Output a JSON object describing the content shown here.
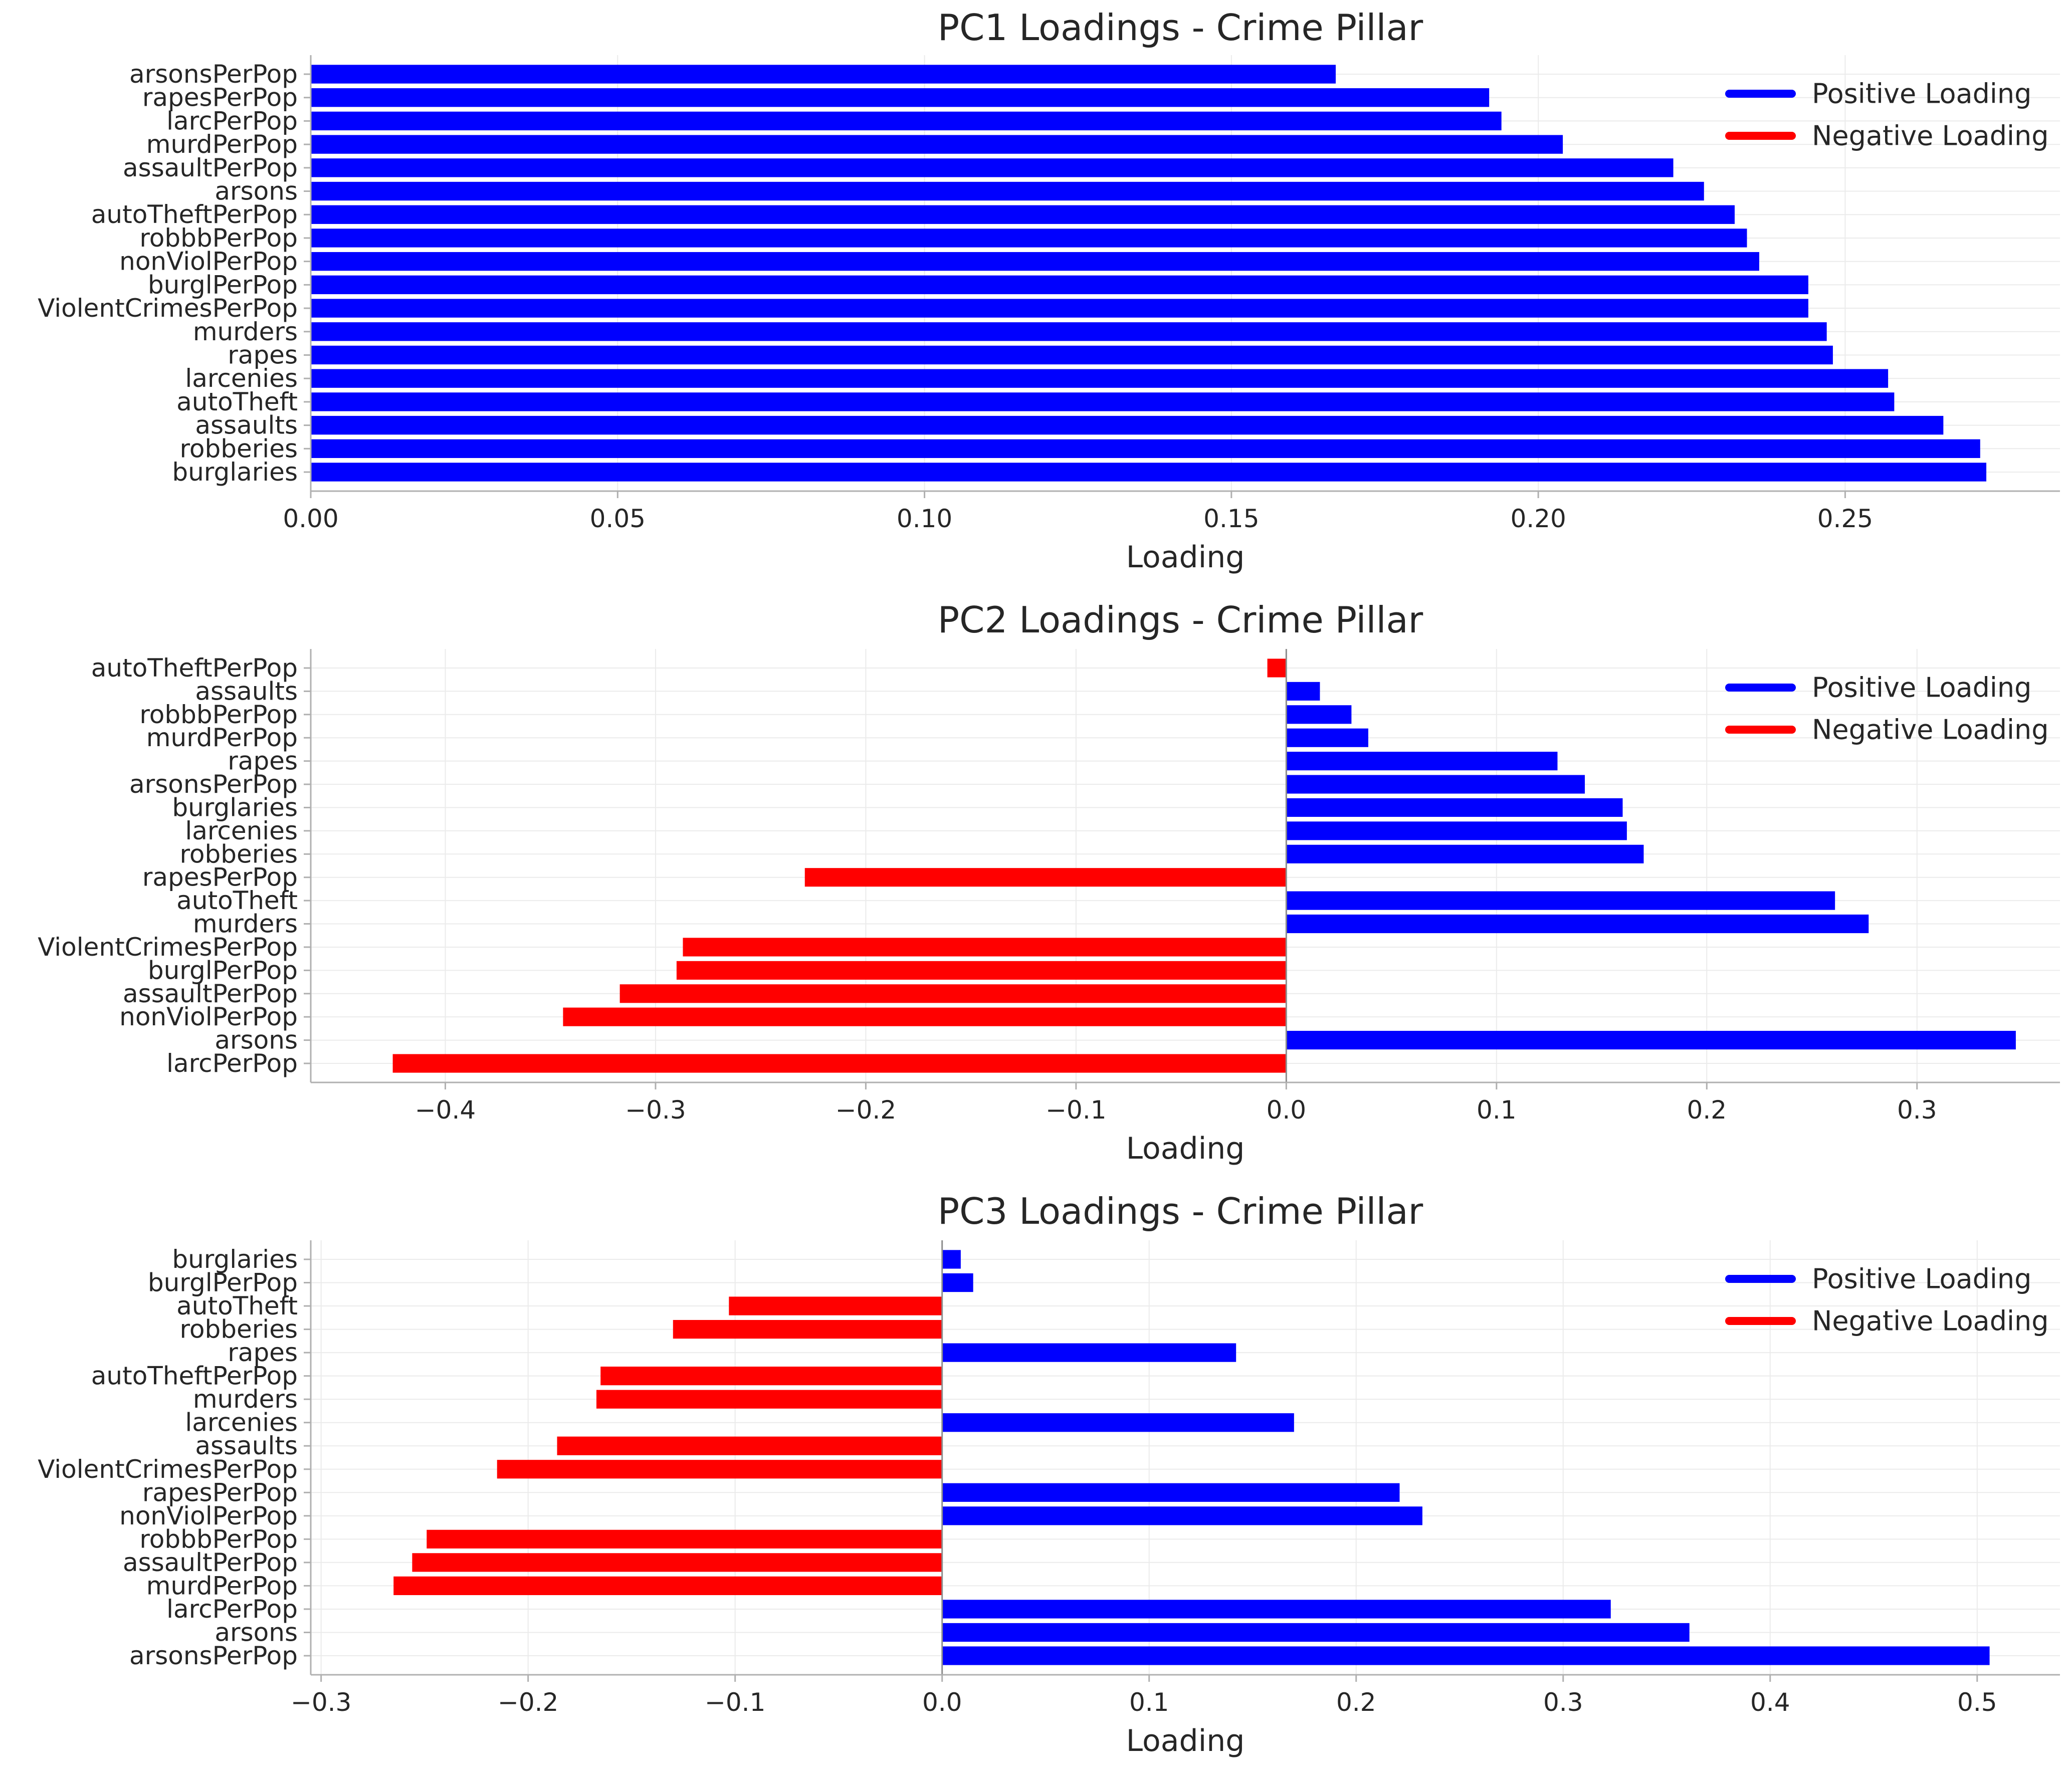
{
  "colors": {
    "positive": "#0000ff",
    "negative": "#ff0000",
    "axis": "#b0b0b0",
    "grid": "#ebebeb",
    "text": "#262626"
  },
  "legend": {
    "placement": "top-right",
    "positive_label": "Positive Loading",
    "negative_label": "Negative Loading"
  },
  "chart_data": [
    {
      "type": "bar",
      "orientation": "horizontal",
      "title": "PC1 Loadings - Crime Pillar",
      "xlabel": "Loading",
      "ylabel": "",
      "xlim": [
        0,
        0.285
      ],
      "xticks": [
        "0.00",
        "0.05",
        "0.10",
        "0.15",
        "0.20",
        "0.25"
      ],
      "xtick_values": [
        0,
        0.05,
        0.1,
        0.15,
        0.2,
        0.25
      ],
      "grid": true,
      "categories": [
        "arsonsPerPop",
        "rapesPerPop",
        "larcPerPop",
        "murdPerPop",
        "assaultPerPop",
        "arsons",
        "autoTheftPerPop",
        "robbbPerPop",
        "nonViolPerPop",
        "burglPerPop",
        "ViolentCrimesPerPop",
        "murders",
        "rapes",
        "larcenies",
        "autoTheft",
        "assaults",
        "robberies",
        "burglaries"
      ],
      "values": [
        0.167,
        0.192,
        0.194,
        0.204,
        0.222,
        0.227,
        0.232,
        0.234,
        0.236,
        0.244,
        0.244,
        0.247,
        0.248,
        0.257,
        0.258,
        0.266,
        0.272,
        0.273
      ]
    },
    {
      "type": "bar",
      "orientation": "horizontal",
      "title": "PC2 Loadings - Crime Pillar",
      "xlabel": "Loading",
      "ylabel": "",
      "xlim": [
        -0.464,
        0.368
      ],
      "xticks": [
        "−0.4",
        "−0.3",
        "−0.2",
        "−0.1",
        "0.0",
        "0.1",
        "0.2",
        "0.3"
      ],
      "xtick_values": [
        -0.4,
        -0.3,
        -0.2,
        -0.1,
        0,
        0.1,
        0.2,
        0.3
      ],
      "grid": true,
      "categories": [
        "autoTheftPerPop",
        "assaults",
        "robbbPerPop",
        "murdPerPop",
        "rapes",
        "arsonsPerPop",
        "burglaries",
        "larcenies",
        "robberies",
        "rapesPerPop",
        "autoTheft",
        "murders",
        "ViolentCrimesPerPop",
        "burglPerPop",
        "assaultPerPop",
        "nonViolPerPop",
        "arsons",
        "larcPerPop"
      ],
      "values": [
        -0.009,
        0.016,
        0.031,
        0.039,
        0.129,
        0.142,
        0.16,
        0.162,
        0.17,
        -0.229,
        0.261,
        0.277,
        -0.287,
        -0.29,
        -0.317,
        -0.344,
        0.347,
        -0.425
      ]
    },
    {
      "type": "bar",
      "orientation": "horizontal",
      "title": "PC3 Loadings - Crime Pillar",
      "xlabel": "Loading",
      "ylabel": "",
      "xlim": [
        -0.305,
        0.54
      ],
      "xticks": [
        "−0.3",
        "−0.2",
        "−0.1",
        "0.0",
        "0.1",
        "0.2",
        "0.3",
        "0.4",
        "0.5"
      ],
      "xtick_values": [
        -0.3,
        -0.2,
        -0.1,
        0,
        0.1,
        0.2,
        0.3,
        0.4,
        0.5
      ],
      "grid": true,
      "categories": [
        "burglaries",
        "burglPerPop",
        "autoTheft",
        "robberies",
        "rapes",
        "autoTheftPerPop",
        "murders",
        "larcenies",
        "assaults",
        "ViolentCrimesPerPop",
        "rapesPerPop",
        "nonViolPerPop",
        "robbbPerPop",
        "assaultPerPop",
        "murdPerPop",
        "larcPerPop",
        "arsons",
        "arsonsPerPop"
      ],
      "values": [
        0.009,
        0.015,
        -0.103,
        -0.13,
        0.142,
        -0.165,
        -0.167,
        0.17,
        -0.186,
        -0.215,
        0.221,
        0.232,
        -0.249,
        -0.256,
        -0.265,
        0.323,
        0.361,
        0.506
      ]
    }
  ]
}
